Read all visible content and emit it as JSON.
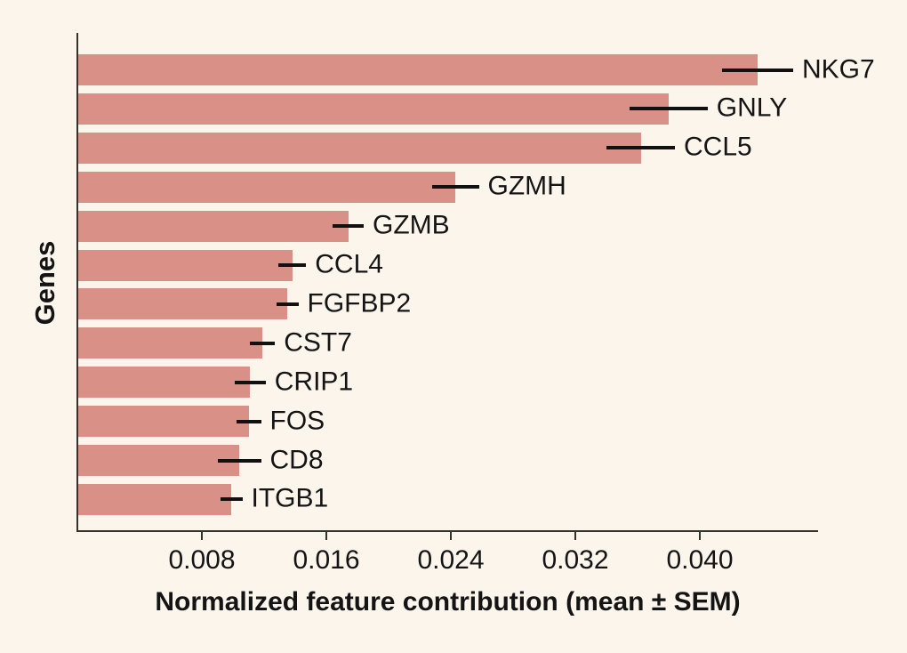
{
  "chart_data": {
    "type": "bar",
    "orientation": "horizontal",
    "title": "",
    "xlabel": "Normalized feature contribution (mean ± SEM)",
    "ylabel": "Genes",
    "categories": [
      "NKG7",
      "GNLY",
      "CCL5",
      "GZMH",
      "GZMB",
      "CCL4",
      "FGFBP2",
      "CST7",
      "CRIP1",
      "FOS",
      "CD8",
      "ITGB1"
    ],
    "series": [
      {
        "name": "Normalized feature contribution (mean)",
        "values": [
          0.0437,
          0.038,
          0.0362,
          0.0243,
          0.0174,
          0.0138,
          0.0135,
          0.0119,
          0.0111,
          0.011,
          0.0104,
          0.0099
        ],
        "sem": [
          0.0023,
          0.0025,
          0.0022,
          0.0015,
          0.001,
          0.0009,
          0.0007,
          0.0008,
          0.001,
          0.0008,
          0.0014,
          0.0007
        ]
      }
    ],
    "xlim": [
      0,
      0.0477
    ],
    "xticks": [
      0.008,
      0.016,
      0.024,
      0.032,
      0.04
    ],
    "xtick_labels": [
      "0.008",
      "0.016",
      "0.024",
      "0.032",
      "0.040"
    ],
    "grid": false,
    "legend_position": "none",
    "colors": {
      "bar": "#d99086",
      "background": "#fbf5ec",
      "axis": "#33332e",
      "text": "#141414",
      "error_bar": "#111111"
    }
  }
}
